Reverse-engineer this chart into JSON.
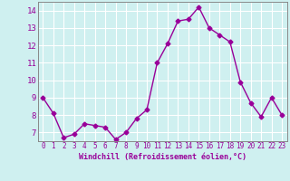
{
  "xlabel": "Windchill (Refroidissement éolien,°C)",
  "x_values": [
    0,
    1,
    2,
    3,
    4,
    5,
    6,
    7,
    8,
    9,
    10,
    11,
    12,
    13,
    14,
    15,
    16,
    17,
    18,
    19,
    20,
    21,
    22,
    23
  ],
  "y_values": [
    9.0,
    8.1,
    6.7,
    6.9,
    7.5,
    7.4,
    7.3,
    6.6,
    7.0,
    7.8,
    8.3,
    11.0,
    12.1,
    13.4,
    13.5,
    14.2,
    13.0,
    12.6,
    12.2,
    9.9,
    8.7,
    7.9,
    9.0,
    8.0
  ],
  "line_color": "#990099",
  "marker": "D",
  "marker_size": 2.5,
  "bg_color": "#cff0f0",
  "grid_color": "#ffffff",
  "ylim": [
    6.5,
    14.5
  ],
  "yticks": [
    7,
    8,
    9,
    10,
    11,
    12,
    13,
    14
  ],
  "xticks": [
    0,
    1,
    2,
    3,
    4,
    5,
    6,
    7,
    8,
    9,
    10,
    11,
    12,
    13,
    14,
    15,
    16,
    17,
    18,
    19,
    20,
    21,
    22,
    23
  ],
  "tick_color": "#990099",
  "label_color": "#990099",
  "spine_color": "#888888",
  "xlabel_fontsize": 6.0,
  "tick_fontsize": 5.5,
  "ytick_fontsize": 6.5
}
